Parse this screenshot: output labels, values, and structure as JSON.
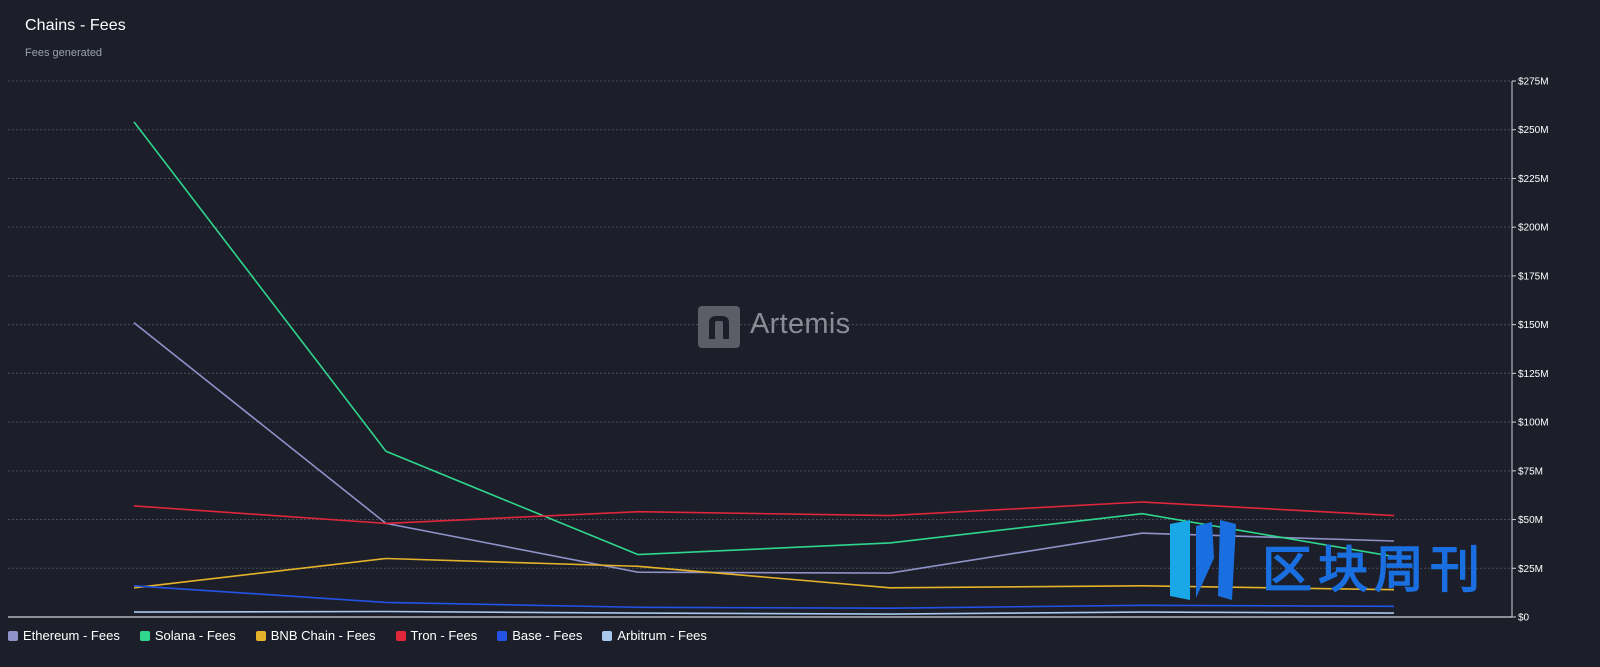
{
  "header": {
    "title": "Chains - Fees",
    "subtitle": "Fees generated"
  },
  "watermark": {
    "brand": "Artemis",
    "overlay_text": "区块周刊"
  },
  "chart_data": {
    "type": "line",
    "title": "Chains - Fees",
    "subtitle": "Fees generated",
    "xlabel": "",
    "ylabel": "",
    "y_axis_position": "right",
    "ylim": [
      0,
      275000000
    ],
    "y_ticks": [
      {
        "value": 0,
        "label": "$0"
      },
      {
        "value": 25000000,
        "label": "$25M"
      },
      {
        "value": 50000000,
        "label": "$50M"
      },
      {
        "value": 75000000,
        "label": "$75M"
      },
      {
        "value": 100000000,
        "label": "$100M"
      },
      {
        "value": 125000000,
        "label": "$125M"
      },
      {
        "value": 150000000,
        "label": "$150M"
      },
      {
        "value": 175000000,
        "label": "$175M"
      },
      {
        "value": 200000000,
        "label": "$200M"
      },
      {
        "value": 225000000,
        "label": "$225M"
      },
      {
        "value": 250000000,
        "label": "$250M"
      },
      {
        "value": 275000000,
        "label": "$275M"
      }
    ],
    "x": [
      1,
      2,
      3,
      4,
      5,
      6
    ],
    "grid": true,
    "legend_position": "bottom-left",
    "series": [
      {
        "name": "Ethereum - Fees",
        "color": "#8f92c8",
        "values": [
          151000000,
          48000000,
          23000000,
          22500000,
          43000000,
          39000000
        ]
      },
      {
        "name": "Solana - Fees",
        "color": "#2fd68c",
        "values": [
          254000000,
          85000000,
          32000000,
          38000000,
          53000000,
          31000000
        ]
      },
      {
        "name": "BNB Chain - Fees",
        "color": "#e5b32a",
        "values": [
          15000000,
          30000000,
          26000000,
          15000000,
          16000000,
          14000000
        ]
      },
      {
        "name": "Tron - Fees",
        "color": "#e0263a",
        "values": [
          57000000,
          48000000,
          54000000,
          52000000,
          59000000,
          52000000
        ]
      },
      {
        "name": "Base - Fees",
        "color": "#2352e6",
        "values": [
          16000000,
          7500000,
          5000000,
          4500000,
          6000000,
          5500000
        ]
      },
      {
        "name": "Arbitrum - Fees",
        "color": "#a8c8ec",
        "values": [
          2500000,
          2800000,
          2000000,
          1500000,
          2500000,
          2000000
        ]
      }
    ]
  }
}
